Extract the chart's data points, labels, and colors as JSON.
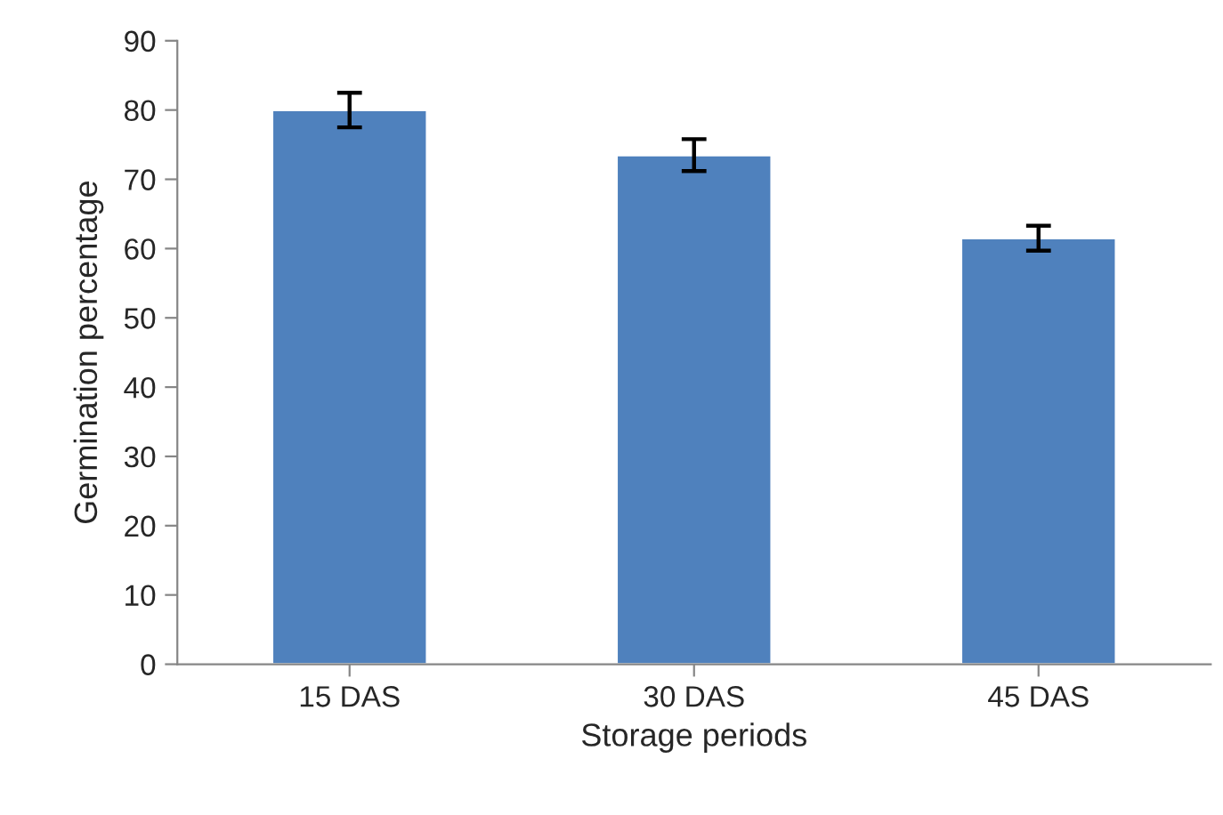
{
  "chart_data": {
    "type": "bar",
    "xlabel": "Storage periods",
    "ylabel": "Germination percentage",
    "categories": [
      "15 DAS",
      "30 DAS",
      "45 DAS"
    ],
    "values": [
      80,
      73.5,
      61.5
    ],
    "errors": [
      2.5,
      2.3,
      1.8
    ],
    "color": "#4f81bd",
    "ylim": [
      0,
      90
    ],
    "yticks": [
      0,
      10,
      20,
      30,
      40,
      50,
      60,
      70,
      80,
      90
    ],
    "grid": false
  }
}
